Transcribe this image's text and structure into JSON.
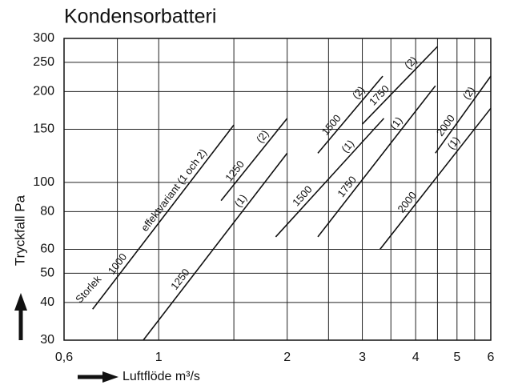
{
  "chart_data": {
    "type": "line",
    "title": "Kondensorbatteri",
    "xlabel": "Luftflöde m³/s",
    "ylabel": "Tryckfall Pa",
    "xscale": "log",
    "yscale": "log",
    "xlim": [
      0.6,
      6
    ],
    "ylim": [
      30,
      300
    ],
    "xticks": [
      {
        "value": 0.6,
        "label": "0,6"
      },
      1,
      2,
      3,
      4,
      5,
      6
    ],
    "xgrid_minor": [
      0.8,
      1.5,
      2.5,
      3.5,
      4.5,
      5.5
    ],
    "yticks": [
      30,
      40,
      50,
      60,
      80,
      100,
      150,
      200,
      250,
      300
    ],
    "grid": true,
    "annotations": [
      "Storlek"
    ],
    "series": [
      {
        "name": "1000",
        "variant": "effektvariant (1 och 2)",
        "color": "#111111",
        "x": [
          0.7,
          1.5
        ],
        "values": [
          38,
          155
        ]
      },
      {
        "name": "1250",
        "variant": "(2)",
        "color": "#111111",
        "x": [
          1.4,
          2.0
        ],
        "values": [
          87,
          163
        ]
      },
      {
        "name": "1250",
        "variant": "(1)",
        "color": "#111111",
        "x": [
          0.92,
          2.0
        ],
        "values": [
          30,
          125
        ]
      },
      {
        "name": "1500",
        "variant": "(2)",
        "color": "#111111",
        "x": [
          2.36,
          3.35
        ],
        "values": [
          125,
          225
        ]
      },
      {
        "name": "1500",
        "variant": "(1)",
        "color": "#111111",
        "x": [
          1.88,
          3.37
        ],
        "values": [
          66,
          163
        ]
      },
      {
        "name": "1750",
        "variant": "(2)",
        "color": "#111111",
        "x": [
          3.0,
          4.5
        ],
        "values": [
          156,
          282
        ]
      },
      {
        "name": "1750",
        "variant": "(1)",
        "color": "#111111",
        "x": [
          2.36,
          4.45
        ],
        "values": [
          66,
          209
        ]
      },
      {
        "name": "2000",
        "variant": "(2)",
        "color": "#111111",
        "x": [
          4.45,
          6
        ],
        "values": [
          125,
          225
        ]
      },
      {
        "name": "2000",
        "variant": "(1)",
        "color": "#111111",
        "x": [
          3.3,
          6
        ],
        "values": [
          60,
          176
        ]
      }
    ]
  }
}
